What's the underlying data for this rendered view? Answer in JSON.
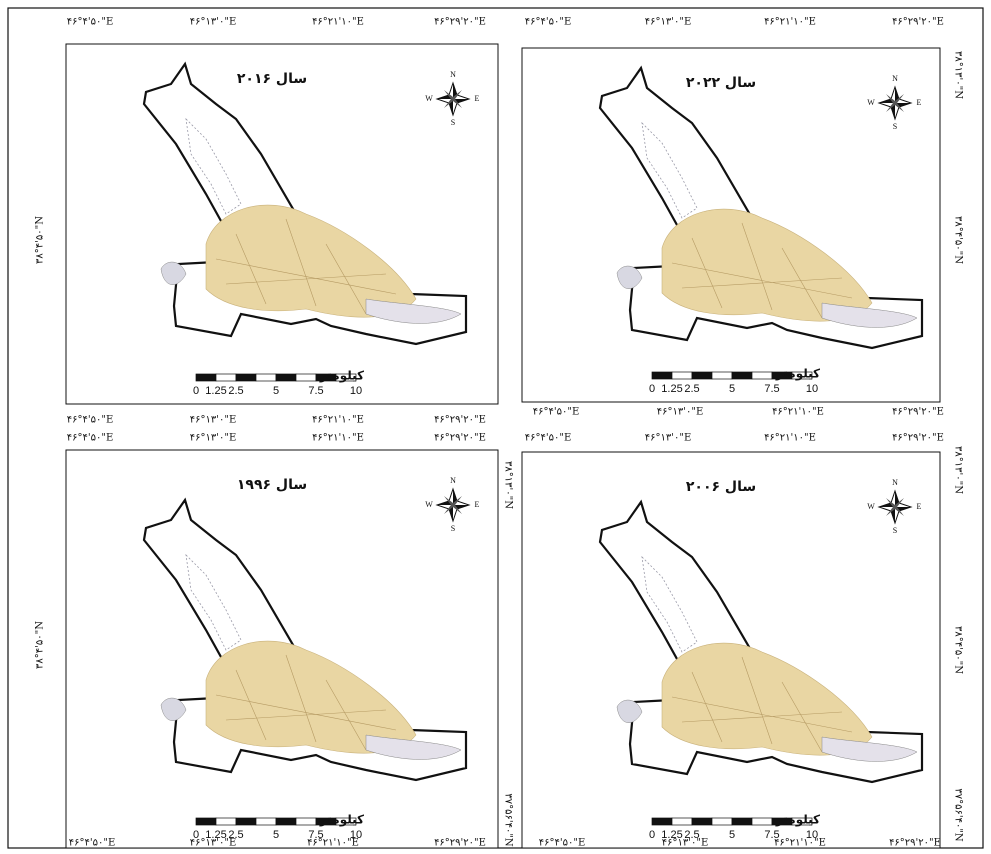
{
  "panels": [
    {
      "title": "سال ۲۰۱۶",
      "top_labels": [
        "۴۶°۴'۵۰\"E",
        "۴۶°۱۳'۰\"E",
        "۴۶°۲۱'۱۰\"E",
        "۴۶°۲۹'۲۰\"E"
      ],
      "bottom_labels": [
        "۴۶°۴'۵۰\"E",
        "۴۶°۱۳'۰\"E",
        "۴۶°۲۱'۱۰\"E",
        "۴۶°۲۹'۲۰\"E"
      ],
      "left_labels": [
        "۳۸°۴'۵۰\"N"
      ],
      "right_labels": [],
      "compass": [
        "N",
        "E",
        "S",
        "W"
      ],
      "scale_labels": [
        "0",
        "1.25",
        "2.5",
        "5",
        "7.5",
        "10"
      ],
      "scale_unit": "کیلومتر"
    },
    {
      "title": "سال ۲۰۲۲",
      "top_labels": [
        "۴۶°۴'۵۰\"E",
        "۴۶°۱۳'۰\"E",
        "۴۶°۲۱'۱۰\"E",
        "۴۶°۲۹'۲۰\"E"
      ],
      "bottom_labels": [
        "۴۶°۴'۵۰\"E",
        "۴۶°۱۳'۰\"E",
        "۴۶°۲۱'۱۰\"E",
        "۴۶°۲۹'۲۰\"E"
      ],
      "left_labels": [],
      "right_labels": [
        "۳۸°۱۳'۰\"N",
        "۳۸°۴'۵۰\"N"
      ],
      "compass": [
        "N",
        "E",
        "S",
        "W"
      ],
      "scale_labels": [
        "0",
        "1.25",
        "2.5",
        "5",
        "7.5",
        "10"
      ],
      "scale_unit": "کیلومتر"
    },
    {
      "title": "سال ۱۹۹۶",
      "top_labels": [
        "۴۶°۴'۵۰\"E",
        "۴۶°۱۳'۰\"E",
        "۴۶°۲۱'۱۰\"E",
        "۴۶°۲۹'۲۰\"E"
      ],
      "bottom_labels": [
        "۴۶°۴'۵۰\"E",
        "۴۶°۱۳'۰\"E",
        "۴۶°۲۱'۱۰\"E",
        "۴۶°۲۹'۲۰\"E"
      ],
      "left_labels": [
        "۳۸°۴'۵۰\"N"
      ],
      "right_labels": [
        "۳۸°۱۳'۰\"N",
        "۳۷°۵۶'۴۰\"N"
      ],
      "compass": [
        "N",
        "E",
        "S",
        "W"
      ],
      "scale_labels": [
        "0",
        "1.25",
        "2.5",
        "5",
        "7.5",
        "10"
      ],
      "scale_unit": "کیلومتر"
    },
    {
      "title": "سال ۲۰۰۶",
      "top_labels": [
        "۴۶°۴'۵۰\"E",
        "۴۶°۱۳'۰\"E",
        "۴۶°۲۱'۱۰\"E",
        "۴۶°۲۹'۲۰\"E"
      ],
      "bottom_labels": [
        "۴۶°۴'۵۰\"E",
        "۴۶°۱۳'۰\"E",
        "۴۶°۲۱'۱۰\"E",
        "۴۶°۲۹'۲۰\"E"
      ],
      "left_labels": [],
      "right_labels": [
        "۳۸°۱۳'۰\"N",
        "۳۸°۴'۵۰\"N",
        "۳۷°۵۶'۴۰\"N"
      ],
      "compass": [
        "N",
        "E",
        "S",
        "W"
      ],
      "scale_labels": [
        "0",
        "1.25",
        "2.5",
        "5",
        "7.5",
        "10"
      ],
      "scale_unit": "کیلومتر"
    }
  ]
}
